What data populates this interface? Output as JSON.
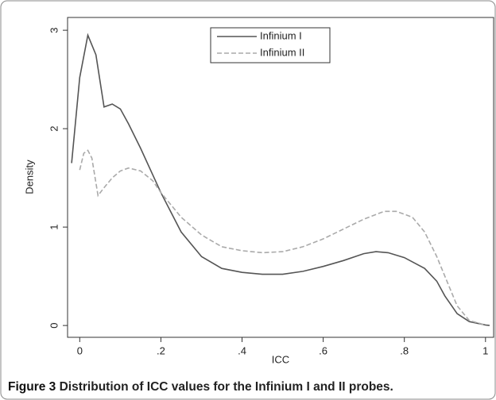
{
  "chart_data": {
    "type": "line",
    "x_label": "ICC",
    "y_label": "Density",
    "caption_label": "Figure 3",
    "caption_text": "Distribution of ICC values for the Infinium I and II probes.",
    "xlim": [
      -0.03,
      1.02
    ],
    "ylim": [
      -0.12,
      3.13
    ],
    "xticks": [
      0,
      {
        "value": 0.2,
        "label": ".2"
      },
      {
        "value": 0.4,
        "label": ".4"
      },
      {
        "value": 0.6,
        "label": ".6"
      },
      {
        "value": 0.8,
        "label": ".8"
      },
      1
    ],
    "yticks": [
      0,
      1,
      2,
      3
    ],
    "grid": false,
    "legend": "top",
    "series": [
      {
        "name": "Infinium I",
        "color": "#555555",
        "dash": false,
        "x": [
          -0.02,
          0,
          0.02,
          0.04,
          0.06,
          0.08,
          0.1,
          0.12,
          0.15,
          0.2,
          0.25,
          0.3,
          0.35,
          0.4,
          0.45,
          0.5,
          0.55,
          0.6,
          0.65,
          0.7,
          0.73,
          0.76,
          0.8,
          0.85,
          0.88,
          0.9,
          0.93,
          0.96,
          1.0,
          1.01
        ],
        "values": [
          1.65,
          2.52,
          2.95,
          2.75,
          2.22,
          2.25,
          2.2,
          2.05,
          1.8,
          1.35,
          0.95,
          0.7,
          0.58,
          0.54,
          0.52,
          0.52,
          0.55,
          0.6,
          0.66,
          0.73,
          0.75,
          0.74,
          0.69,
          0.58,
          0.45,
          0.3,
          0.12,
          0.04,
          0.005,
          0.0
        ]
      },
      {
        "name": "Infinium II",
        "color": "#aaaaaa",
        "dash": true,
        "x": [
          0,
          0.01,
          0.02,
          0.03,
          0.045,
          0.06,
          0.08,
          0.1,
          0.12,
          0.15,
          0.18,
          0.2,
          0.25,
          0.3,
          0.35,
          0.4,
          0.45,
          0.5,
          0.55,
          0.6,
          0.65,
          0.7,
          0.75,
          0.78,
          0.82,
          0.85,
          0.88,
          0.9,
          0.93,
          0.96,
          1.0
        ],
        "values": [
          1.58,
          1.75,
          1.78,
          1.7,
          1.32,
          1.4,
          1.5,
          1.57,
          1.6,
          1.57,
          1.47,
          1.35,
          1.1,
          0.92,
          0.8,
          0.76,
          0.74,
          0.75,
          0.8,
          0.88,
          0.98,
          1.08,
          1.16,
          1.16,
          1.1,
          0.95,
          0.7,
          0.5,
          0.2,
          0.05,
          0.005
        ]
      }
    ]
  }
}
